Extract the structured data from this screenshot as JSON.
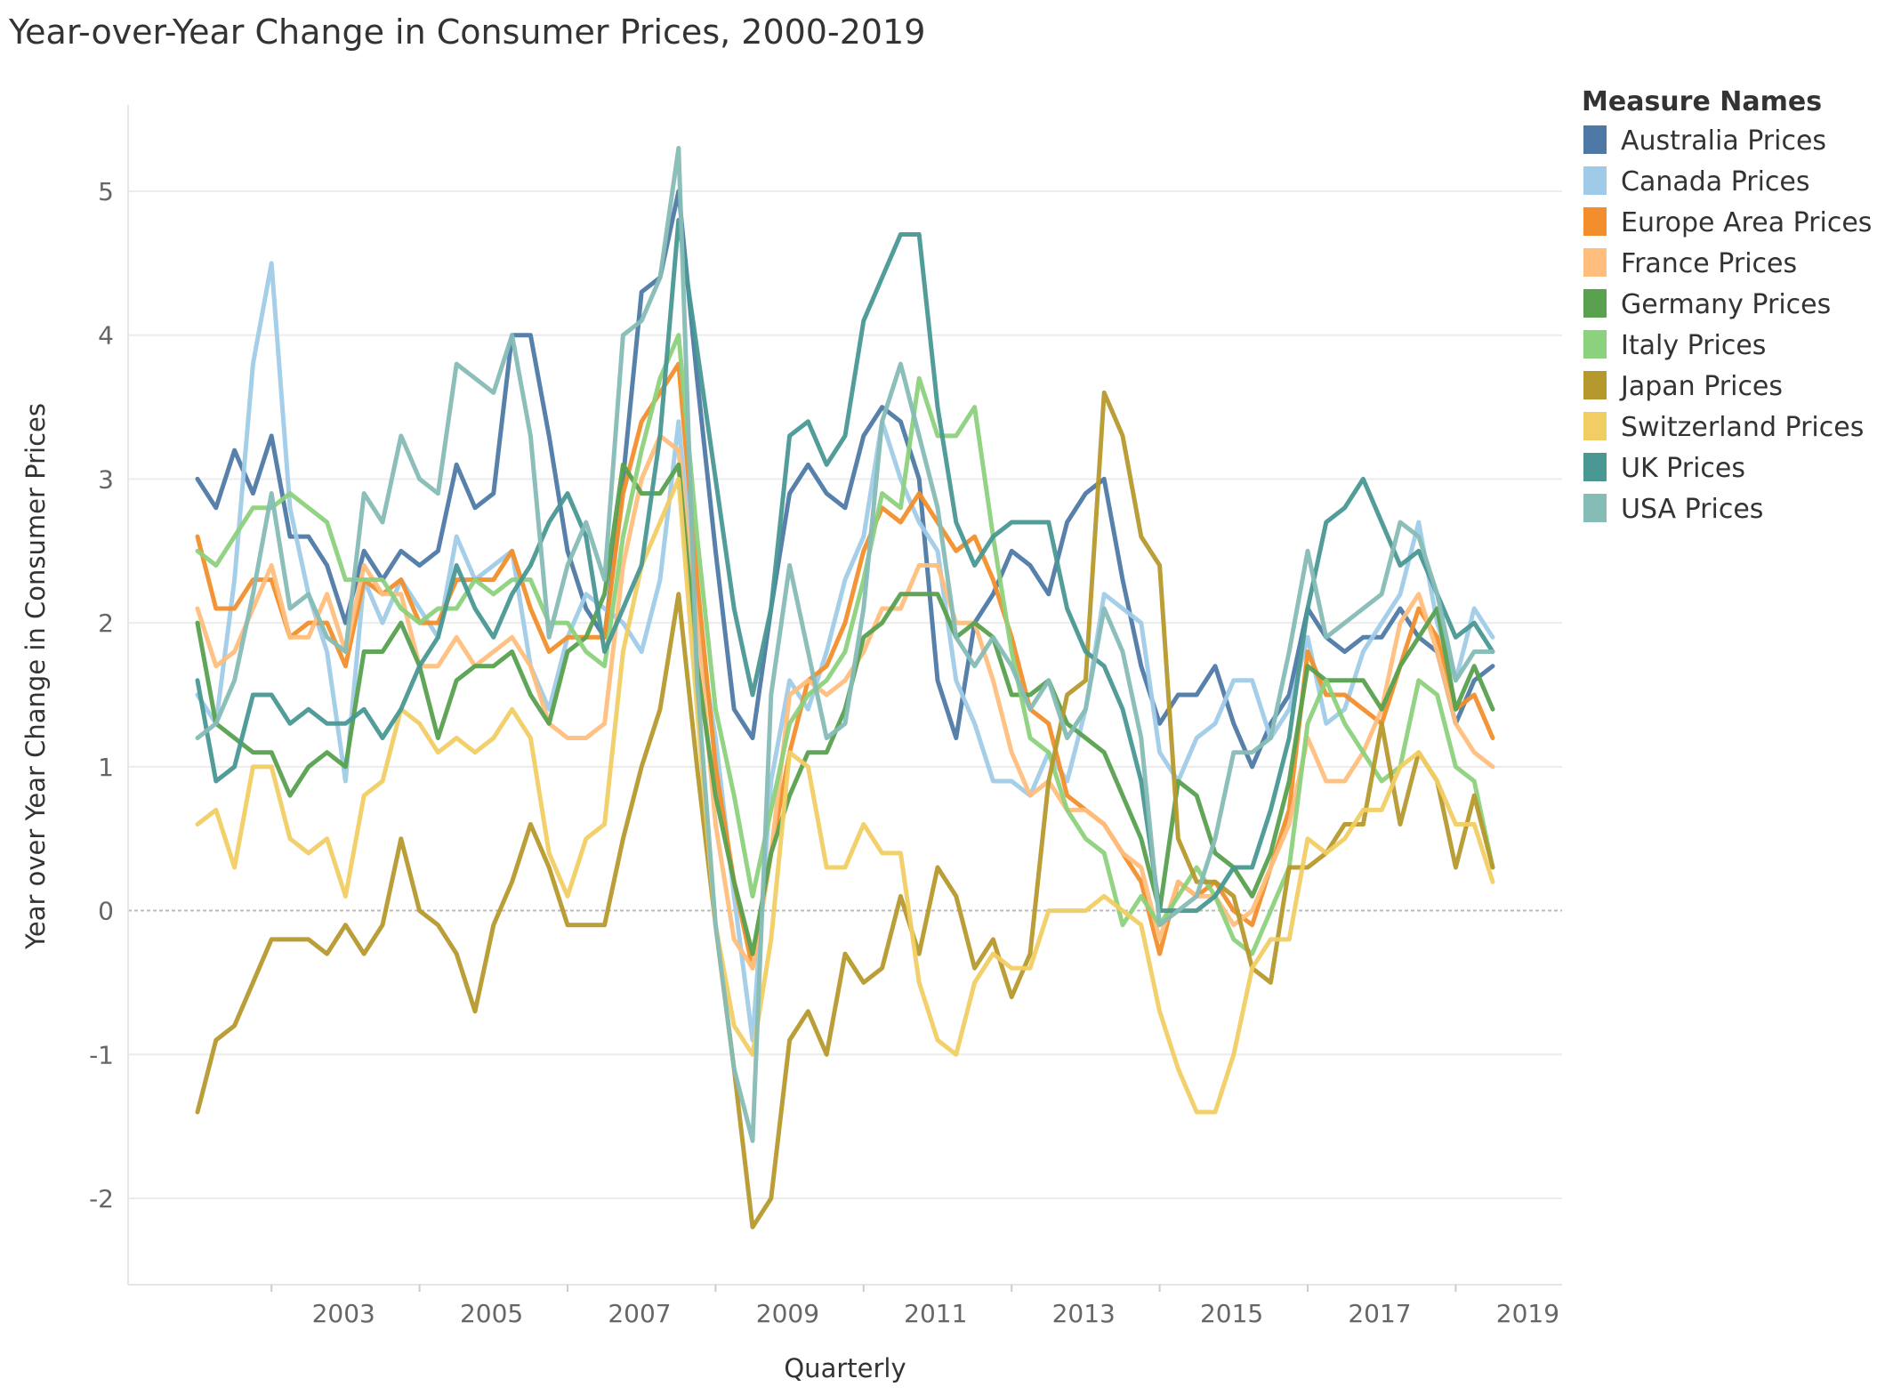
{
  "chart_data": {
    "type": "line",
    "title": "Year-over-Year Change in Consumer Prices, 2000-2019",
    "xlabel": "Quarterly",
    "ylabel": "Year over Year Change in Consumer Prices",
    "x_ticks": [
      "2003",
      "2005",
      "2007",
      "2009",
      "2011",
      "2013",
      "2015",
      "2017",
      "2019"
    ],
    "y_ticks": [
      -2,
      -1,
      0,
      1,
      2,
      3,
      4,
      5
    ],
    "xlim": [
      "2002-Q1",
      "2019-Q3"
    ],
    "ylim": [
      -2.6,
      5.6
    ],
    "grid": true,
    "legend": {
      "title": "Measure Names",
      "position": "right"
    },
    "x": [
      "2002-Q1",
      "2002-Q2",
      "2002-Q3",
      "2002-Q4",
      "2003-Q1",
      "2003-Q2",
      "2003-Q3",
      "2003-Q4",
      "2004-Q1",
      "2004-Q2",
      "2004-Q3",
      "2004-Q4",
      "2005-Q1",
      "2005-Q2",
      "2005-Q3",
      "2005-Q4",
      "2006-Q1",
      "2006-Q2",
      "2006-Q3",
      "2006-Q4",
      "2007-Q1",
      "2007-Q2",
      "2007-Q3",
      "2007-Q4",
      "2008-Q1",
      "2008-Q2",
      "2008-Q3",
      "2008-Q4",
      "2009-Q1",
      "2009-Q2",
      "2009-Q3",
      "2009-Q4",
      "2010-Q1",
      "2010-Q2",
      "2010-Q3",
      "2010-Q4",
      "2011-Q1",
      "2011-Q2",
      "2011-Q3",
      "2011-Q4",
      "2012-Q1",
      "2012-Q2",
      "2012-Q3",
      "2012-Q4",
      "2013-Q1",
      "2013-Q2",
      "2013-Q3",
      "2013-Q4",
      "2014-Q1",
      "2014-Q2",
      "2014-Q3",
      "2014-Q4",
      "2015-Q1",
      "2015-Q2",
      "2015-Q3",
      "2015-Q4",
      "2016-Q1",
      "2016-Q2",
      "2016-Q3",
      "2016-Q4",
      "2017-Q1",
      "2017-Q2",
      "2017-Q3",
      "2017-Q4",
      "2018-Q1",
      "2018-Q2",
      "2018-Q3",
      "2018-Q4",
      "2019-Q1",
      "2019-Q2",
      "2019-Q3"
    ],
    "series": [
      {
        "name": "Australia Prices",
        "color": "#4e79a7",
        "values": [
          3.0,
          2.8,
          3.2,
          2.9,
          3.3,
          2.6,
          2.6,
          2.4,
          2.0,
          2.5,
          2.3,
          2.5,
          2.4,
          2.5,
          3.1,
          2.8,
          2.9,
          4.0,
          4.0,
          3.3,
          2.5,
          2.1,
          1.9,
          3.0,
          4.3,
          4.4,
          5.0,
          3.7,
          2.5,
          1.4,
          1.2,
          2.1,
          2.9,
          3.1,
          2.9,
          2.8,
          3.3,
          3.5,
          3.4,
          3.0,
          1.6,
          1.2,
          2.0,
          2.2,
          2.5,
          2.4,
          2.2,
          2.7,
          2.9,
          3.0,
          2.3,
          1.7,
          1.3,
          1.5,
          1.5,
          1.7,
          1.3,
          1.0,
          1.3,
          1.5,
          2.1,
          1.9,
          1.8,
          1.9,
          1.9,
          2.1,
          1.9,
          1.8,
          1.3,
          1.6,
          1.7
        ]
      },
      {
        "name": "Canada Prices",
        "color": "#a0cbe8",
        "values": [
          1.5,
          1.3,
          2.3,
          3.8,
          4.5,
          2.8,
          2.2,
          1.8,
          0.9,
          2.3,
          2.0,
          2.3,
          2.1,
          1.9,
          2.6,
          2.3,
          2.4,
          2.5,
          1.7,
          1.4,
          1.9,
          2.2,
          2.1,
          2.0,
          1.8,
          2.3,
          3.4,
          2.0,
          1.2,
          0.1,
          -0.9,
          0.9,
          1.6,
          1.4,
          1.8,
          2.3,
          2.6,
          3.4,
          3.0,
          2.7,
          2.5,
          1.6,
          1.3,
          0.9,
          0.9,
          0.8,
          1.1,
          0.9,
          1.4,
          2.2,
          2.1,
          2.0,
          1.1,
          0.9,
          1.2,
          1.3,
          1.6,
          1.6,
          1.2,
          1.4,
          1.9,
          1.3,
          1.4,
          1.8,
          2.0,
          2.2,
          2.7,
          2.0,
          1.6,
          2.1,
          1.9
        ]
      },
      {
        "name": "Europe Area Prices",
        "color": "#f28e2b",
        "values": [
          2.6,
          2.1,
          2.1,
          2.3,
          2.3,
          1.9,
          2.0,
          2.0,
          1.7,
          2.3,
          2.2,
          2.3,
          2.0,
          2.0,
          2.3,
          2.3,
          2.3,
          2.5,
          2.1,
          1.8,
          1.9,
          1.9,
          1.9,
          2.9,
          3.4,
          3.6,
          3.8,
          2.3,
          1.0,
          0.2,
          -0.4,
          0.4,
          1.1,
          1.6,
          1.7,
          2.0,
          2.5,
          2.8,
          2.7,
          2.9,
          2.7,
          2.5,
          2.6,
          2.3,
          1.9,
          1.4,
          1.3,
          0.8,
          0.7,
          0.6,
          0.4,
          0.2,
          -0.3,
          0.2,
          0.1,
          0.2,
          0.0,
          -0.1,
          0.3,
          0.7,
          1.8,
          1.5,
          1.5,
          1.4,
          1.3,
          1.7,
          2.1,
          1.9,
          1.4,
          1.5,
          1.2
        ]
      },
      {
        "name": "France Prices",
        "color": "#ffbe7d",
        "values": [
          2.1,
          1.7,
          1.8,
          2.1,
          2.4,
          1.9,
          1.9,
          2.2,
          1.8,
          2.4,
          2.2,
          2.2,
          1.7,
          1.7,
          1.9,
          1.7,
          1.8,
          1.9,
          1.7,
          1.3,
          1.2,
          1.2,
          1.3,
          2.4,
          3.0,
          3.3,
          3.2,
          2.0,
          0.6,
          -0.2,
          -0.4,
          0.4,
          1.5,
          1.6,
          1.5,
          1.6,
          1.8,
          2.1,
          2.1,
          2.4,
          2.4,
          2.0,
          2.0,
          1.6,
          1.1,
          0.8,
          0.9,
          0.7,
          0.7,
          0.6,
          0.4,
          0.3,
          -0.2,
          0.2,
          0.1,
          0.1,
          -0.1,
          0.0,
          0.3,
          0.6,
          1.2,
          0.9,
          0.9,
          1.1,
          1.4,
          2.0,
          2.2,
          1.8,
          1.3,
          1.1,
          1.0
        ]
      },
      {
        "name": "Germany Prices",
        "color": "#59a14f",
        "values": [
          2.0,
          1.3,
          1.2,
          1.1,
          1.1,
          0.8,
          1.0,
          1.1,
          1.0,
          1.8,
          1.8,
          2.0,
          1.7,
          1.2,
          1.6,
          1.7,
          1.7,
          1.8,
          1.5,
          1.3,
          1.8,
          1.9,
          2.2,
          3.1,
          2.9,
          2.9,
          3.1,
          1.7,
          0.8,
          0.2,
          -0.3,
          0.4,
          0.8,
          1.1,
          1.1,
          1.4,
          1.9,
          2.0,
          2.2,
          2.2,
          2.2,
          1.9,
          2.0,
          1.9,
          1.5,
          1.5,
          1.6,
          1.3,
          1.2,
          1.1,
          0.8,
          0.5,
          0.0,
          0.9,
          0.8,
          0.4,
          0.3,
          0.1,
          0.4,
          0.9,
          1.7,
          1.6,
          1.6,
          1.6,
          1.4,
          1.7,
          1.9,
          2.1,
          1.4,
          1.7,
          1.4
        ]
      },
      {
        "name": "Italy Prices",
        "color": "#8cd17d",
        "values": [
          2.5,
          2.4,
          2.6,
          2.8,
          2.8,
          2.9,
          2.8,
          2.7,
          2.3,
          2.3,
          2.3,
          2.1,
          2.0,
          2.1,
          2.1,
          2.3,
          2.2,
          2.3,
          2.3,
          2.0,
          2.0,
          1.8,
          1.7,
          2.6,
          3.2,
          3.7,
          4.0,
          2.6,
          1.4,
          0.8,
          0.1,
          0.7,
          1.3,
          1.5,
          1.6,
          1.8,
          2.3,
          2.9,
          2.8,
          3.7,
          3.3,
          3.3,
          3.5,
          2.6,
          1.8,
          1.2,
          1.1,
          0.7,
          0.5,
          0.4,
          -0.1,
          0.1,
          -0.1,
          0.1,
          0.3,
          0.1,
          -0.2,
          -0.3,
          0.0,
          0.3,
          1.3,
          1.6,
          1.3,
          1.1,
          0.9,
          1.0,
          1.6,
          1.5,
          1.0,
          0.9,
          0.3
        ]
      },
      {
        "name": "Japan Prices",
        "color": "#b6992d",
        "values": [
          -1.4,
          -0.9,
          -0.8,
          -0.5,
          -0.2,
          -0.2,
          -0.2,
          -0.3,
          -0.1,
          -0.3,
          -0.1,
          0.5,
          0.0,
          -0.1,
          -0.3,
          -0.7,
          -0.1,
          0.2,
          0.6,
          0.3,
          -0.1,
          -0.1,
          -0.1,
          0.5,
          1.0,
          1.4,
          2.2,
          1.0,
          -0.1,
          -1.1,
          -2.2,
          -2.0,
          -0.9,
          -0.7,
          -1.0,
          -0.3,
          -0.5,
          -0.4,
          0.1,
          -0.3,
          0.3,
          0.1,
          -0.4,
          -0.2,
          -0.6,
          -0.3,
          0.9,
          1.5,
          1.6,
          3.6,
          3.3,
          2.6,
          2.4,
          0.5,
          0.2,
          0.2,
          0.1,
          -0.4,
          -0.5,
          0.3,
          0.3,
          0.4,
          0.6,
          0.6,
          1.3,
          0.6,
          1.1,
          0.9,
          0.3,
          0.8,
          0.3
        ]
      },
      {
        "name": "Switzerland Prices",
        "color": "#f1ce63",
        "values": [
          0.6,
          0.7,
          0.3,
          1.0,
          1.0,
          0.5,
          0.4,
          0.5,
          0.1,
          0.8,
          0.9,
          1.4,
          1.3,
          1.1,
          1.2,
          1.1,
          1.2,
          1.4,
          1.2,
          0.4,
          0.1,
          0.5,
          0.6,
          1.8,
          2.4,
          2.7,
          3.0,
          1.4,
          -0.1,
          -0.8,
          -1.0,
          -0.2,
          1.1,
          1.0,
          0.3,
          0.3,
          0.6,
          0.4,
          0.4,
          -0.5,
          -0.9,
          -1.0,
          -0.5,
          -0.3,
          -0.4,
          -0.4,
          0.0,
          0.0,
          0.0,
          0.1,
          0.0,
          -0.1,
          -0.7,
          -1.1,
          -1.4,
          -1.4,
          -1.0,
          -0.4,
          -0.2,
          -0.2,
          0.5,
          0.4,
          0.5,
          0.7,
          0.7,
          1.0,
          1.1,
          0.9,
          0.6,
          0.6,
          0.2
        ]
      },
      {
        "name": "UK Prices",
        "color": "#499894",
        "values": [
          1.6,
          0.9,
          1.0,
          1.5,
          1.5,
          1.3,
          1.4,
          1.3,
          1.3,
          1.4,
          1.2,
          1.4,
          1.7,
          1.9,
          2.4,
          2.1,
          1.9,
          2.2,
          2.4,
          2.7,
          2.9,
          2.6,
          1.8,
          2.1,
          2.4,
          3.3,
          4.8,
          3.9,
          3.0,
          2.1,
          1.5,
          2.1,
          3.3,
          3.4,
          3.1,
          3.3,
          4.1,
          4.4,
          4.7,
          4.7,
          3.5,
          2.7,
          2.4,
          2.6,
          2.7,
          2.7,
          2.7,
          2.1,
          1.8,
          1.7,
          1.4,
          0.9,
          0.0,
          0.0,
          0.0,
          0.1,
          0.3,
          0.3,
          0.7,
          1.2,
          2.1,
          2.7,
          2.8,
          3.0,
          2.7,
          2.4,
          2.5,
          2.2,
          1.9,
          2.0,
          1.8
        ]
      },
      {
        "name": "USA Prices",
        "color": "#86bcb6",
        "values": [
          1.2,
          1.3,
          1.6,
          2.2,
          2.9,
          2.1,
          2.2,
          1.9,
          1.8,
          2.9,
          2.7,
          3.3,
          3.0,
          2.9,
          3.8,
          3.7,
          3.6,
          4.0,
          3.3,
          1.9,
          2.4,
          2.7,
          2.3,
          4.0,
          4.1,
          4.4,
          5.3,
          1.6,
          -0.1,
          -1.1,
          -1.6,
          1.5,
          2.4,
          1.8,
          1.2,
          1.3,
          2.1,
          3.4,
          3.8,
          3.3,
          2.8,
          1.9,
          1.7,
          1.9,
          1.7,
          1.4,
          1.6,
          1.2,
          1.4,
          2.1,
          1.8,
          1.2,
          -0.1,
          0.0,
          0.1,
          0.5,
          1.1,
          1.1,
          1.2,
          1.8,
          2.5,
          1.9,
          2.0,
          2.1,
          2.2,
          2.7,
          2.6,
          2.2,
          1.6,
          1.8,
          1.8
        ]
      }
    ]
  }
}
